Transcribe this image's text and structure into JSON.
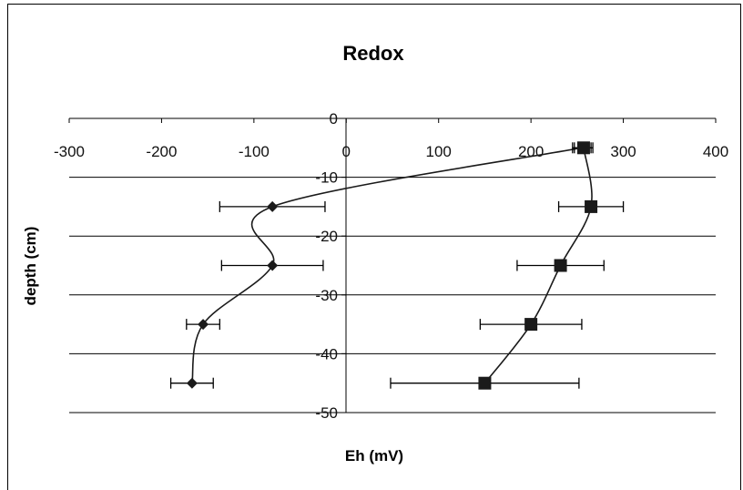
{
  "chart_data": {
    "type": "scatter",
    "title": "Redox",
    "xlabel": "Eh (mV)",
    "ylabel": "depth (cm)",
    "xlim": [
      -300,
      400
    ],
    "ylim": [
      -50,
      0
    ],
    "x_ticks": [
      "-300",
      "-200",
      "-100",
      "0",
      "100",
      "200",
      "300",
      "400"
    ],
    "y_ticks": [
      "0",
      "-10",
      "-20",
      "-30",
      "-40",
      "-50"
    ],
    "grid": "horizontal major gridlines",
    "legend": "none",
    "series": [
      {
        "marker": "diamond",
        "color": "#1a1a1a",
        "points": [
          {
            "x": 255,
            "y": -5,
            "xerr": 10
          },
          {
            "x": -80,
            "y": -15,
            "xerr": 57
          },
          {
            "x": -80,
            "y": -25,
            "xerr": 55
          },
          {
            "x": -155,
            "y": -35,
            "xerr": 18
          },
          {
            "x": -167,
            "y": -45,
            "xerr": 23
          }
        ]
      },
      {
        "marker": "square",
        "color": "#1a1a1a",
        "points": [
          {
            "x": 257,
            "y": -5,
            "xerr": 10
          },
          {
            "x": 265,
            "y": -15,
            "xerr": 35
          },
          {
            "x": 232,
            "y": -25,
            "xerr": 47
          },
          {
            "x": 200,
            "y": -35,
            "xerr": 55
          },
          {
            "x": 150,
            "y": -45,
            "xerr": 102
          }
        ]
      }
    ]
  }
}
